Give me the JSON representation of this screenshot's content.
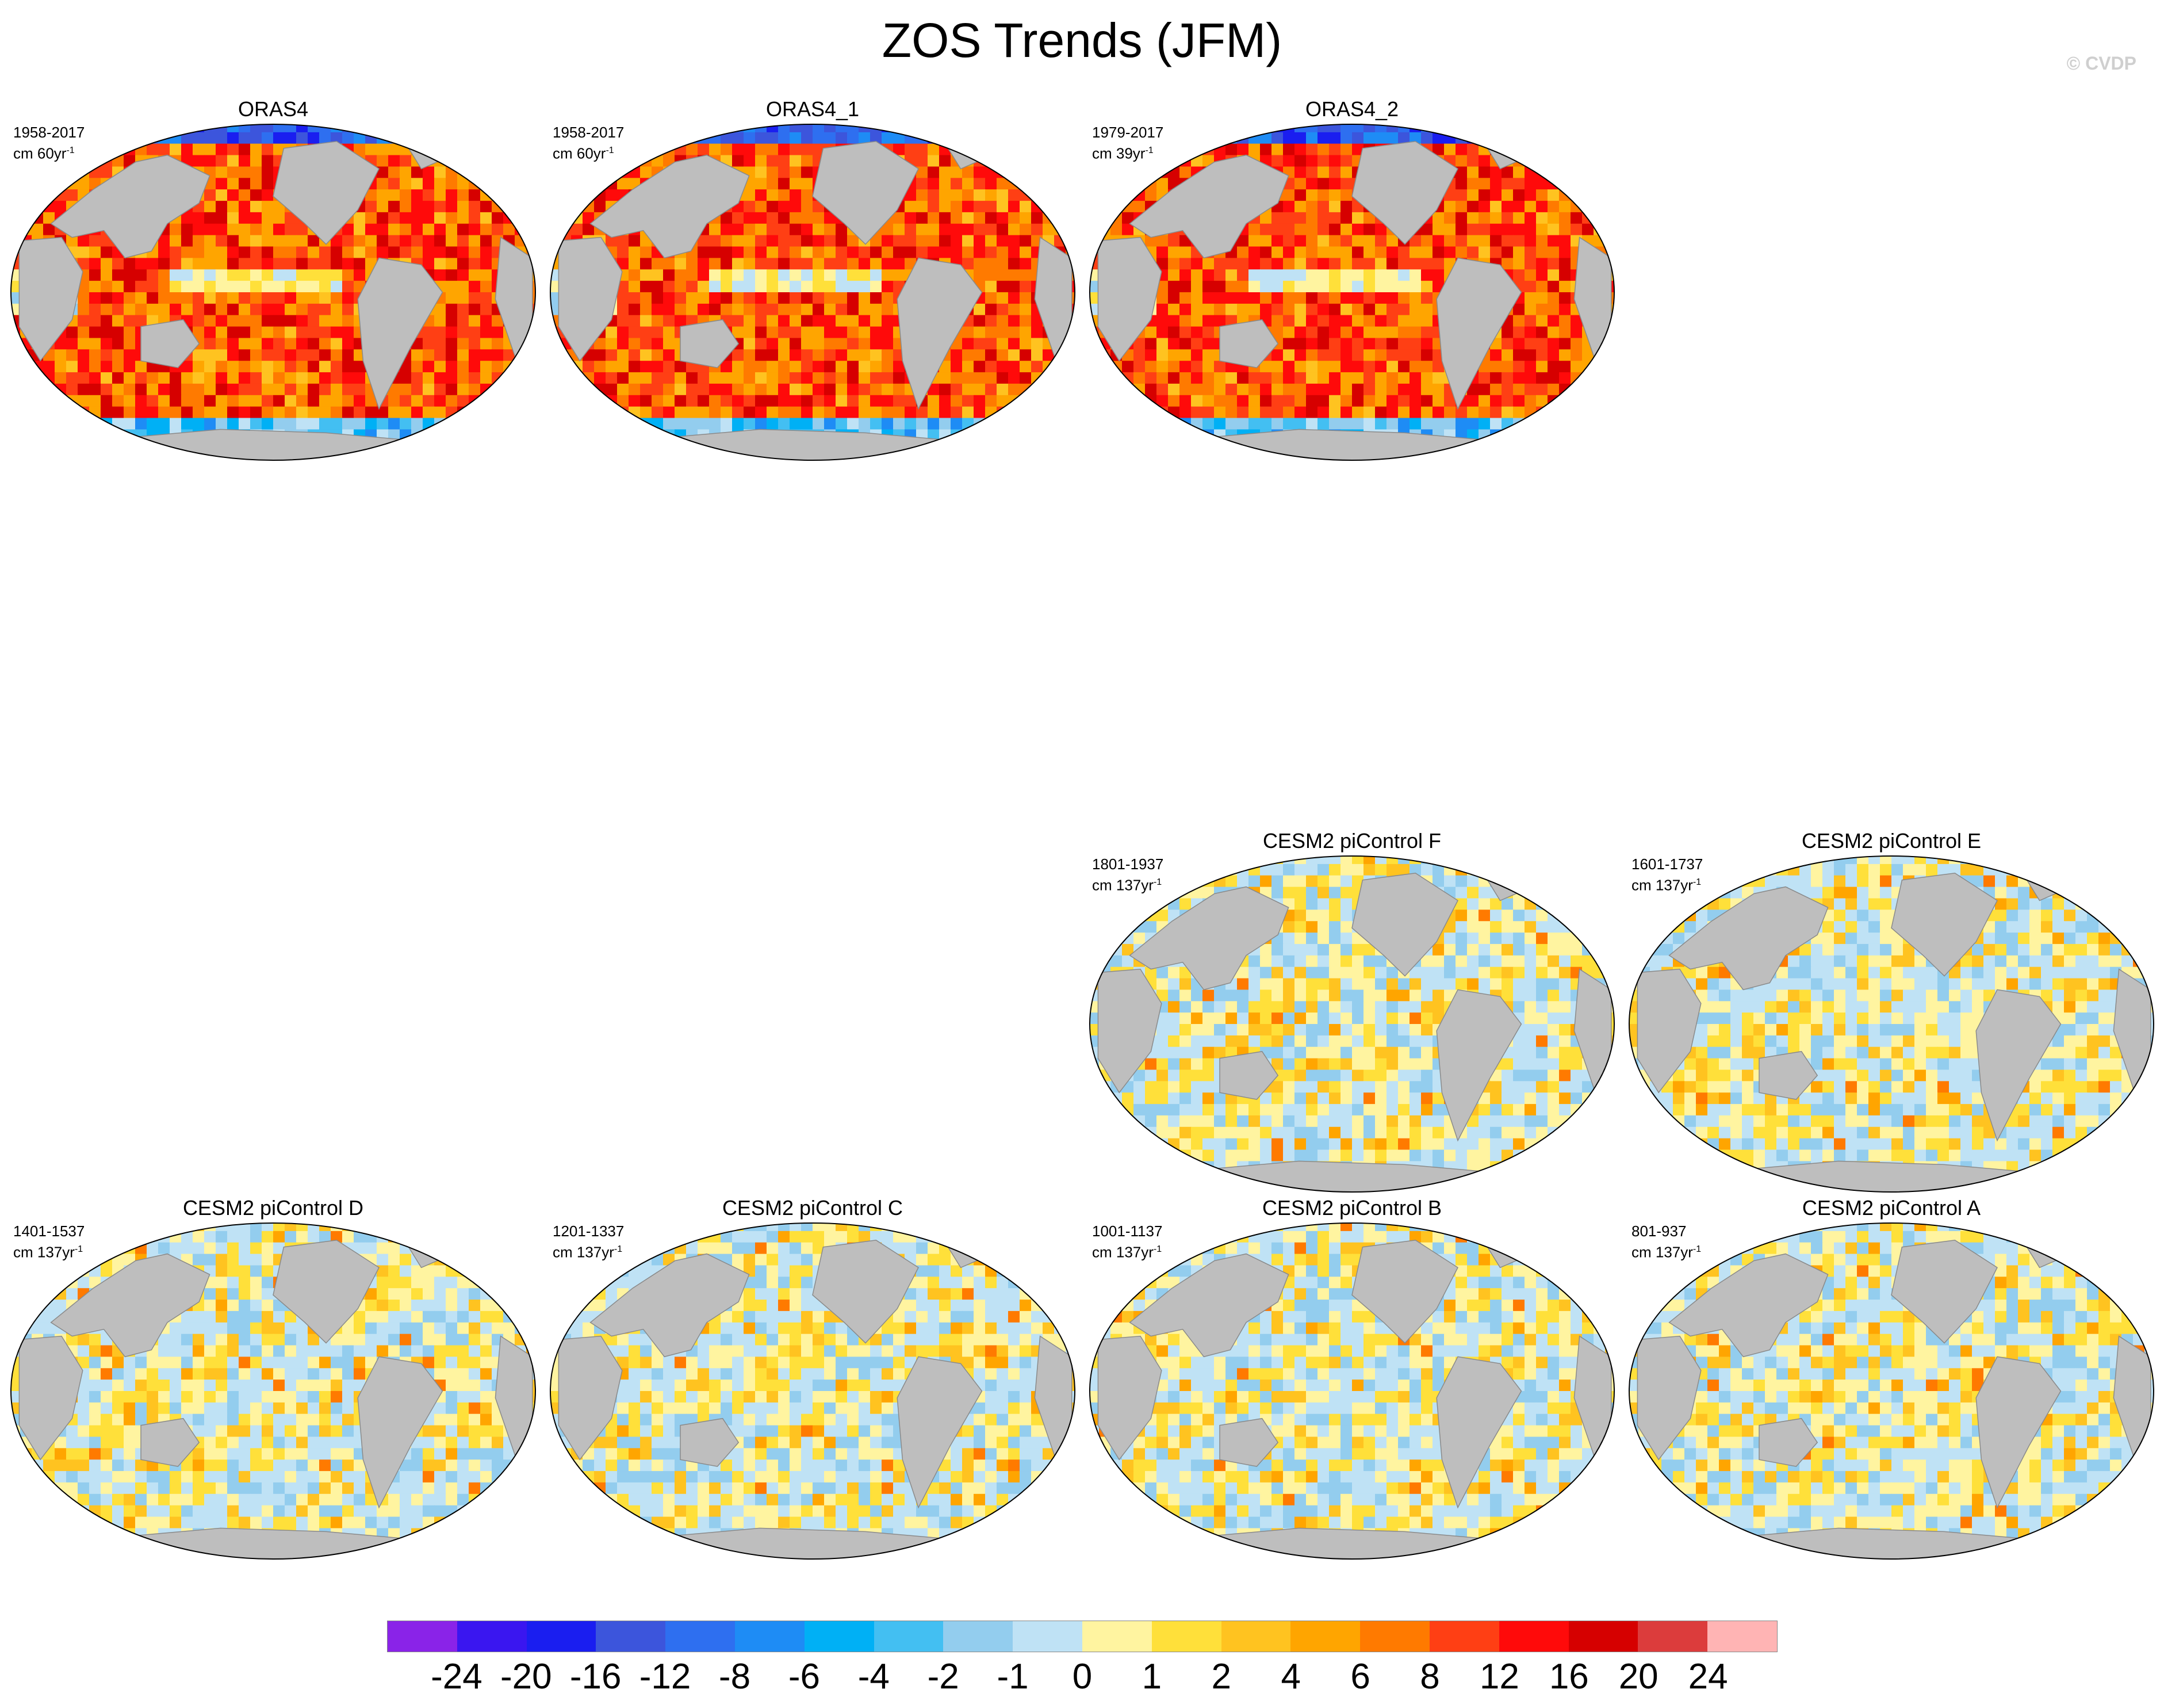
{
  "figure": {
    "title": "ZOS Trends (JFM)",
    "credit": "© CVDP"
  },
  "panels": [
    {
      "name": "ORAS4",
      "period": "1958-2017",
      "unit": "cm 60yr",
      "exp": "-1",
      "style": "obs",
      "seed": 3
    },
    {
      "name": "ORAS4_1",
      "period": "1958-2017",
      "unit": "cm 60yr",
      "exp": "-1",
      "style": "obs",
      "seed": 5
    },
    {
      "name": "ORAS4_2",
      "period": "1979-2017",
      "unit": "cm 39yr",
      "exp": "-1",
      "style": "obs",
      "seed": 9
    },
    {
      "name": "CESM2 piControl F",
      "period": "1801-1937",
      "unit": "cm 137yr",
      "exp": "-1",
      "style": "ctl",
      "seed": 11
    },
    {
      "name": "CESM2 piControl E",
      "period": "1601-1737",
      "unit": "cm 137yr",
      "exp": "-1",
      "style": "ctl",
      "seed": 17
    },
    {
      "name": "CESM2 piControl D",
      "period": "1401-1537",
      "unit": "cm 137yr",
      "exp": "-1",
      "style": "ctl",
      "seed": 23
    },
    {
      "name": "CESM2 piControl C",
      "period": "1201-1337",
      "unit": "cm 137yr",
      "exp": "-1",
      "style": "ctl",
      "seed": 29
    },
    {
      "name": "CESM2 piControl B",
      "period": "1001-1137",
      "unit": "cm 137yr",
      "exp": "-1",
      "style": "ctl",
      "seed": 31
    },
    {
      "name": "CESM2 piControl A",
      "period": "801-937",
      "unit": "cm 137yr",
      "exp": "-1",
      "style": "ctl",
      "seed": 37
    }
  ],
  "colorbar": {
    "colors": [
      "#8a23e8",
      "#3a16f0",
      "#1a1ef0",
      "#3c55dc",
      "#2e6ff0",
      "#1e8cf5",
      "#00b0f5",
      "#43bff2",
      "#93cdee",
      "#bfe2f5",
      "#fff4a0",
      "#ffe03a",
      "#ffc320",
      "#ffa500",
      "#ff7a00",
      "#ff3f14",
      "#ff0a0a",
      "#d60000",
      "#dc3c3c",
      "#ffb4b4"
    ],
    "labels": [
      "-24",
      "-20",
      "-16",
      "-12",
      "-8",
      "-6",
      "-4",
      "-2",
      "-1",
      "0",
      "1",
      "2",
      "4",
      "6",
      "8",
      "12",
      "16",
      "20",
      "24"
    ]
  },
  "land_color": "#bebebe"
}
